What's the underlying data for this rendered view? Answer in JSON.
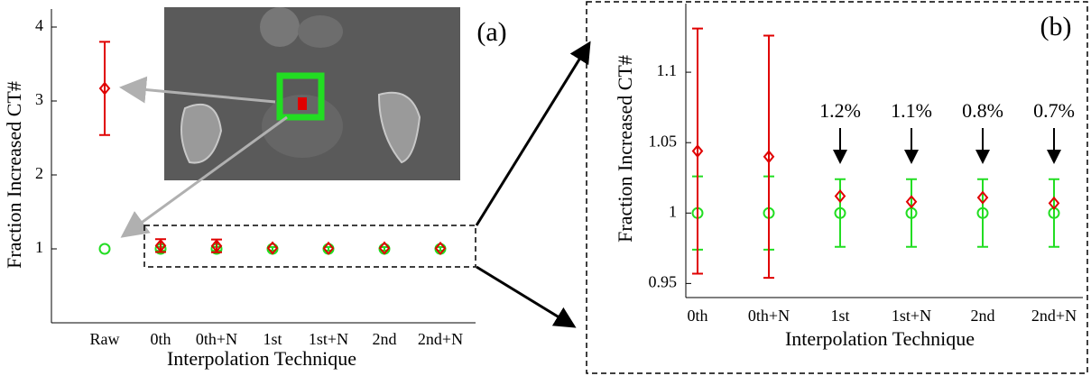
{
  "chart_data": [
    {
      "type": "errorbar",
      "title": "(a)",
      "xlabel": "Interpolation Technique",
      "ylabel": "Fraction Increased CT#",
      "categories": [
        "Raw",
        "0th",
        "0th+N",
        "1st",
        "1st+N",
        "2nd",
        "2nd+N"
      ],
      "ylim": [
        0,
        4
      ],
      "yticks": [
        1,
        2,
        3,
        4
      ],
      "series": [
        {
          "color": "#e00000",
          "marker": "diamond",
          "values": [
            3.17,
            1.044,
            1.04,
            1.012,
            1.008,
            1.011,
            1.007
          ],
          "errors": [
            0.63,
            0.087,
            0.086,
            null,
            null,
            null,
            null
          ]
        },
        {
          "color": "#22dd22",
          "marker": "circle",
          "values": [
            1.0,
            1.0,
            1.0,
            1.0,
            1.0,
            1.0,
            1.0
          ],
          "errors": [
            null,
            0.026,
            0.026,
            0.024,
            0.024,
            0.024,
            0.024
          ]
        }
      ]
    },
    {
      "type": "errorbar",
      "title": "(b)",
      "xlabel": "Interpolation Technique",
      "ylabel": "Fraction Increased CT#",
      "categories": [
        "0th",
        "0th+N",
        "1st",
        "1st+N",
        "2nd",
        "2nd+N"
      ],
      "ylim": [
        0.94,
        1.15
      ],
      "yticks": [
        0.95,
        1,
        1.05,
        1.1
      ],
      "annotations": [
        "1.2%",
        "1.1%",
        "0.8%",
        "0.7%"
      ],
      "series": [
        {
          "color": "#e00000",
          "marker": "diamond",
          "values": [
            1.044,
            1.04,
            1.012,
            1.008,
            1.011,
            1.007
          ],
          "errors": [
            0.087,
            0.086,
            null,
            null,
            null,
            null
          ]
        },
        {
          "color": "#22dd22",
          "marker": "circle",
          "values": [
            1.0,
            1.0,
            1.0,
            1.0,
            1.0,
            1.0
          ],
          "errors": [
            0.026,
            0.026,
            0.024,
            0.024,
            0.024,
            0.024
          ]
        }
      ]
    }
  ]
}
